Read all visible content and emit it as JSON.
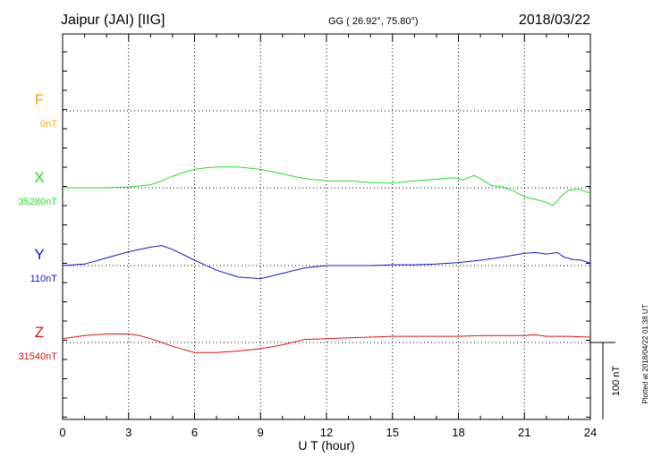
{
  "header": {
    "station": "Jaipur (JAI)  [IIG]",
    "coords": "GG ( 26.92°,  75.80°)",
    "date": "2018/03/22"
  },
  "footer_note": "Plotted at 2018/04/22 01:38 UT",
  "scale_label": "100 nT",
  "chart_data": {
    "type": "line",
    "title": "Jaipur (JAI)  [IIG]",
    "xlabel": "U T (hour)",
    "ylabel": "",
    "xlim": [
      0,
      24
    ],
    "xticks": [
      0,
      3,
      6,
      9,
      12,
      15,
      18,
      21,
      24
    ],
    "grid": true,
    "scale_bar_nT": 100,
    "series": [
      {
        "name": "F",
        "baseline": "0nT",
        "color": "#ffa500",
        "x": [],
        "y": []
      },
      {
        "name": "X",
        "baseline": "35280nT",
        "color": "#22dd22",
        "x": [
          0,
          1,
          2,
          3,
          4,
          4.5,
          5,
          5.5,
          6,
          6.5,
          7,
          8,
          9,
          10,
          11,
          12,
          13,
          14,
          15,
          16,
          17,
          17.8,
          18.2,
          18.7,
          19,
          19.5,
          20,
          20.5,
          21,
          21.5,
          22,
          22.3,
          22.7,
          23,
          23.5,
          24
        ],
        "y": [
          0,
          0,
          0,
          1,
          4,
          9,
          15,
          20,
          24,
          26,
          27,
          27,
          24,
          18,
          12,
          9,
          9,
          7,
          6,
          9,
          11,
          13,
          10,
          16,
          12,
          3,
          1,
          -4,
          -12,
          -15,
          -19,
          -23,
          -10,
          -3,
          -2,
          -7
        ]
      },
      {
        "name": "Y",
        "baseline": "110nT",
        "color": "#1515cc",
        "x": [
          0,
          1,
          2,
          3,
          4,
          4.5,
          5,
          6,
          7,
          8,
          9,
          10,
          11,
          12,
          13,
          14,
          15,
          16,
          17,
          18,
          19,
          20,
          21,
          21.5,
          22,
          22.5,
          22.8,
          23.2,
          23.6,
          24
        ],
        "y": [
          0,
          2,
          10,
          18,
          24,
          26,
          21,
          7,
          -6,
          -15,
          -17,
          -10,
          -3,
          0,
          0,
          0,
          1,
          1,
          2,
          4,
          7,
          11,
          16,
          17,
          15,
          17,
          11,
          8,
          7,
          3
        ]
      },
      {
        "name": "Z",
        "baseline": "31540nT",
        "color": "#dd1111",
        "x": [
          0,
          1,
          2,
          3,
          3.5,
          4,
          5,
          6,
          7,
          8,
          9,
          10,
          11,
          12,
          13,
          14,
          15,
          16,
          17,
          18,
          19,
          20,
          21,
          21.5,
          22,
          23,
          24
        ],
        "y": [
          5,
          9,
          11,
          11,
          9,
          5,
          -5,
          -13,
          -13,
          -11,
          -8,
          -3,
          4,
          5,
          6,
          7,
          8,
          8,
          8,
          8,
          9,
          9,
          9,
          10,
          8,
          8,
          7
        ]
      }
    ]
  }
}
